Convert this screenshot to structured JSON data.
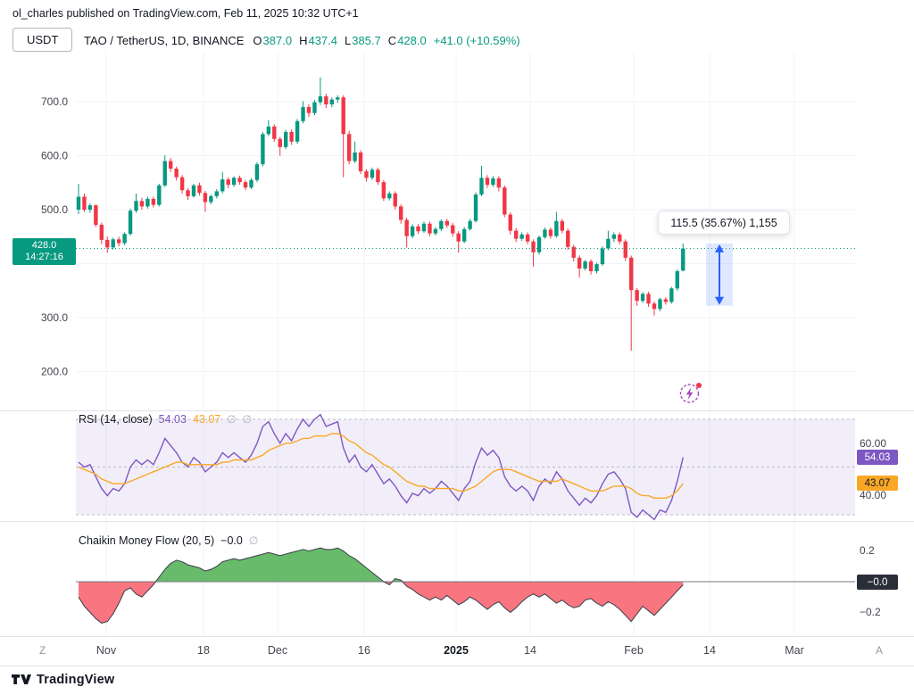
{
  "header": {
    "published_line": "ol_charles published on TradingView.com, Feb 11, 2025 10:32 UTC+1"
  },
  "toolbar": {
    "currency_button": "USDT"
  },
  "symbol_bar": {
    "title": "TAO / TetherUS, 1D, BINANCE",
    "o_label": "O",
    "o_value": "387.0",
    "h_label": "H",
    "h_value": "437.4",
    "l_label": "L",
    "l_value": "385.7",
    "c_label": "C",
    "c_value": "428.0",
    "change": "+41.0 (+10.59%)"
  },
  "price_scale": {
    "current_value": "428.0",
    "current_time": "14:27:16"
  },
  "measure_tooltip": {
    "label": "115.5 (35.67%) 1,155"
  },
  "rsi": {
    "title": "RSI (14, close)",
    "value": "54.03",
    "ma_value": "43.07",
    "hide_icon": "∅",
    "right_upper": "60.00",
    "right_lower": "40.00",
    "badge_value": "54.03",
    "badge_ma": "43.07"
  },
  "cmf": {
    "title": "Chaikin Money Flow (20, 5)",
    "value": "−0.0",
    "hide_icon": "∅",
    "right_upper": "0.2",
    "right_lower": "−0.2",
    "badge": "−0.0"
  },
  "time_axis": {
    "left_hint": "Z",
    "right_hint": "A"
  },
  "footer": {
    "brand": "TradingView"
  },
  "colors": {
    "up": "#089981",
    "down": "#F23645",
    "rsi": "#7E57C2",
    "rsi_ma": "#F9A825",
    "cmf_pos": "#4CAF50",
    "cmf_neg": "#F7525F",
    "accent_blue": "#2962FF",
    "grid": "#F0F3FA"
  },
  "chart_data": {
    "type": "candlestick",
    "symbol": "TAO/USDT",
    "timeframe": "1D",
    "exchange": "BINANCE",
    "last": {
      "open": 387.0,
      "high": 437.4,
      "low": 385.7,
      "close": 428.0,
      "change": 41.0,
      "change_pct": 10.59
    },
    "price_pane": {
      "ylim": [
        190,
        770
      ],
      "grid_prices": [
        200,
        300,
        400,
        500,
        600,
        700
      ],
      "axis_labels": [
        {
          "text": "700.0",
          "price": 700
        },
        {
          "text": "600.0",
          "price": 600
        },
        {
          "text": "500.0",
          "price": 500
        },
        {
          "text": "300.0",
          "price": 300
        },
        {
          "text": "200.0",
          "price": 200
        }
      ],
      "current_price": 428.0,
      "candles": [
        [
          500,
          548,
          492,
          524
        ],
        [
          524,
          530,
          496,
          500
        ],
        [
          500,
          512,
          494,
          508
        ],
        [
          508,
          510,
          468,
          472
        ],
        [
          472,
          476,
          436,
          444
        ],
        [
          444,
          450,
          420,
          430
        ],
        [
          430,
          448,
          426,
          445
        ],
        [
          445,
          450,
          432,
          438
        ],
        [
          438,
          458,
          434,
          455
        ],
        [
          455,
          502,
          452,
          498
        ],
        [
          498,
          530,
          494,
          516
        ],
        [
          516,
          522,
          500,
          506
        ],
        [
          506,
          524,
          502,
          520
        ],
        [
          520,
          524,
          504,
          509
        ],
        [
          509,
          548,
          506,
          545
        ],
        [
          545,
          601,
          542,
          590
        ],
        [
          590,
          596,
          570,
          576
        ],
        [
          576,
          580,
          554,
          560
        ],
        [
          560,
          564,
          530,
          536
        ],
        [
          536,
          540,
          518,
          525
        ],
        [
          525,
          548,
          522,
          545
        ],
        [
          545,
          550,
          526,
          531
        ],
        [
          531,
          535,
          496,
          514
        ],
        [
          514,
          528,
          510,
          525
        ],
        [
          525,
          538,
          521,
          534
        ],
        [
          534,
          570,
          530,
          556
        ],
        [
          556,
          560,
          540,
          546
        ],
        [
          546,
          562,
          542,
          559
        ],
        [
          559,
          563,
          546,
          551
        ],
        [
          551,
          555,
          536,
          541
        ],
        [
          541,
          558,
          538,
          555
        ],
        [
          555,
          588,
          551,
          584
        ],
        [
          584,
          644,
          580,
          640
        ],
        [
          640,
          666,
          636,
          654
        ],
        [
          654,
          658,
          626,
          631
        ],
        [
          631,
          635,
          600,
          616
        ],
        [
          616,
          648,
          612,
          644
        ],
        [
          644,
          649,
          620,
          626
        ],
        [
          626,
          668,
          622,
          664
        ],
        [
          664,
          701,
          660,
          690
        ],
        [
          690,
          695,
          672,
          679
        ],
        [
          679,
          703,
          675,
          699
        ],
        [
          699,
          745,
          694,
          710
        ],
        [
          710,
          715,
          688,
          695
        ],
        [
          695,
          708,
          690,
          704
        ],
        [
          704,
          712,
          698,
          708
        ],
        [
          708,
          712,
          560,
          640
        ],
        [
          640,
          646,
          584,
          590
        ],
        [
          590,
          626,
          586,
          606
        ],
        [
          606,
          610,
          566,
          571
        ],
        [
          571,
          575,
          552,
          559
        ],
        [
          559,
          578,
          555,
          574
        ],
        [
          574,
          578,
          546,
          551
        ],
        [
          551,
          555,
          516,
          521
        ],
        [
          521,
          534,
          517,
          530
        ],
        [
          530,
          534,
          500,
          506
        ],
        [
          506,
          510,
          474,
          481
        ],
        [
          481,
          485,
          430,
          451
        ],
        [
          451,
          473,
          447,
          469
        ],
        [
          469,
          473,
          455,
          460
        ],
        [
          460,
          478,
          457,
          474
        ],
        [
          474,
          478,
          451,
          456
        ],
        [
          456,
          468,
          452,
          464
        ],
        [
          464,
          482,
          460,
          479
        ],
        [
          479,
          483,
          466,
          471
        ],
        [
          471,
          475,
          450,
          456
        ],
        [
          456,
          460,
          420,
          441
        ],
        [
          441,
          468,
          438,
          464
        ],
        [
          464,
          483,
          461,
          479
        ],
        [
          479,
          532,
          476,
          528
        ],
        [
          528,
          581,
          525,
          559
        ],
        [
          559,
          564,
          540,
          546
        ],
        [
          546,
          562,
          542,
          558
        ],
        [
          558,
          562,
          534,
          541
        ],
        [
          541,
          545,
          486,
          491
        ],
        [
          491,
          495,
          454,
          461
        ],
        [
          461,
          466,
          440,
          446
        ],
        [
          446,
          458,
          442,
          454
        ],
        [
          454,
          458,
          436,
          441
        ],
        [
          441,
          445,
          394,
          421
        ],
        [
          421,
          452,
          417,
          449
        ],
        [
          449,
          467,
          446,
          463
        ],
        [
          463,
          467,
          446,
          451
        ],
        [
          451,
          496,
          448,
          479
        ],
        [
          479,
          483,
          456,
          461
        ],
        [
          461,
          465,
          426,
          431
        ],
        [
          431,
          435,
          404,
          411
        ],
        [
          411,
          415,
          374,
          391
        ],
        [
          391,
          407,
          387,
          404
        ],
        [
          404,
          408,
          380,
          386
        ],
        [
          386,
          402,
          382,
          399
        ],
        [
          399,
          432,
          396,
          428
        ],
        [
          428,
          461,
          425,
          446
        ],
        [
          446,
          458,
          440,
          454
        ],
        [
          454,
          458,
          436,
          441
        ],
        [
          441,
          445,
          405,
          411
        ],
        [
          411,
          415,
          239,
          351
        ],
        [
          351,
          355,
          322,
          331
        ],
        [
          331,
          347,
          327,
          344
        ],
        [
          344,
          348,
          320,
          326
        ],
        [
          326,
          330,
          304,
          316
        ],
        [
          316,
          337,
          312,
          334
        ],
        [
          334,
          338,
          324,
          329
        ],
        [
          329,
          357,
          326,
          354
        ],
        [
          354,
          389,
          350,
          386
        ],
        [
          387,
          437.4,
          385.7,
          428
        ]
      ]
    },
    "measure": {
      "x": 806,
      "half_width": 15,
      "from_price": 322,
      "to_price": 437.4,
      "label": "115.5 (35.67%) 1,155"
    },
    "rsi_pane": {
      "upper": 70,
      "middle": 50,
      "lower": 30,
      "series": [
        {
          "name": "RSI",
          "color": "#7E57C2",
          "values": [
            52,
            50,
            51,
            46,
            41,
            38,
            41,
            40,
            43,
            50,
            53,
            51,
            53,
            51,
            56,
            62,
            59,
            56,
            52,
            50,
            54,
            52,
            48,
            50,
            52,
            56,
            54,
            56,
            54,
            52,
            55,
            60,
            67,
            69,
            64,
            60,
            64,
            61,
            66,
            70,
            67,
            70,
            72,
            67,
            68,
            69,
            58,
            52,
            55,
            50,
            48,
            51,
            47,
            43,
            45,
            42,
            38,
            35,
            39,
            38,
            41,
            39,
            41,
            44,
            42,
            39,
            36,
            41,
            44,
            52,
            58,
            55,
            57,
            54,
            46,
            42,
            40,
            42,
            40,
            36,
            42,
            45,
            43,
            48,
            45,
            40,
            37,
            34,
            37,
            35,
            38,
            43,
            47,
            48,
            45,
            41,
            31,
            29,
            32,
            30,
            28,
            32,
            31,
            36,
            44,
            54.03
          ]
        },
        {
          "name": "RSI-based MA",
          "color": "#F9A825",
          "values": [
            50,
            49,
            48,
            47,
            45,
            44,
            43,
            43,
            43,
            44,
            45,
            46,
            47,
            48,
            49,
            50,
            51,
            52,
            52,
            51,
            51,
            51,
            51,
            51,
            51,
            52,
            52,
            53,
            53,
            53,
            53,
            54,
            55,
            57,
            58,
            59,
            60,
            60,
            61,
            62,
            62,
            63,
            63,
            63,
            64,
            64,
            63,
            61,
            60,
            58,
            56,
            55,
            53,
            51,
            50,
            48,
            46,
            44,
            43,
            42,
            42,
            41,
            41,
            41,
            41,
            41,
            40,
            40,
            41,
            42,
            44,
            46,
            48,
            49,
            49,
            49,
            48,
            47,
            46,
            45,
            44,
            44,
            44,
            44,
            45,
            44,
            43,
            42,
            41,
            40,
            40,
            40,
            41,
            42,
            42,
            42,
            41,
            39,
            38,
            38,
            37,
            37,
            37,
            38,
            40,
            43.07
          ]
        }
      ]
    },
    "cmf_pane": {
      "ylim": [
        -0.3,
        0.25
      ],
      "grid": [
        0.2,
        0,
        -0.2
      ],
      "values": [
        -0.1,
        -0.16,
        -0.2,
        -0.24,
        -0.27,
        -0.26,
        -0.21,
        -0.14,
        -0.06,
        -0.04,
        -0.08,
        -0.1,
        -0.06,
        -0.02,
        0.03,
        0.08,
        0.12,
        0.14,
        0.13,
        0.11,
        0.1,
        0.09,
        0.07,
        0.08,
        0.1,
        0.13,
        0.14,
        0.15,
        0.14,
        0.15,
        0.16,
        0.17,
        0.18,
        0.19,
        0.18,
        0.17,
        0.18,
        0.19,
        0.2,
        0.21,
        0.2,
        0.21,
        0.22,
        0.21,
        0.21,
        0.22,
        0.2,
        0.17,
        0.15,
        0.12,
        0.09,
        0.06,
        0.03,
        0.0,
        -0.02,
        0.02,
        0.01,
        -0.03,
        -0.05,
        -0.08,
        -0.1,
        -0.12,
        -0.1,
        -0.12,
        -0.09,
        -0.12,
        -0.15,
        -0.13,
        -0.1,
        -0.12,
        -0.15,
        -0.18,
        -0.15,
        -0.13,
        -0.17,
        -0.2,
        -0.17,
        -0.13,
        -0.1,
        -0.08,
        -0.1,
        -0.08,
        -0.11,
        -0.14,
        -0.12,
        -0.15,
        -0.17,
        -0.16,
        -0.12,
        -0.11,
        -0.14,
        -0.16,
        -0.13,
        -0.15,
        -0.18,
        -0.22,
        -0.26,
        -0.21,
        -0.16,
        -0.19,
        -0.22,
        -0.18,
        -0.14,
        -0.1,
        -0.06,
        -0.02
      ]
    },
    "x_axis": [
      {
        "label": "Nov",
        "x": 119
      },
      {
        "label": "18",
        "x": 228
      },
      {
        "label": "Dec",
        "x": 311
      },
      {
        "label": "16",
        "x": 408
      },
      {
        "label": "2025",
        "x": 511,
        "bold": true
      },
      {
        "label": "14",
        "x": 594
      },
      {
        "label": "Feb",
        "x": 710
      },
      {
        "label": "14",
        "x": 795
      },
      {
        "label": "Mar",
        "x": 890
      }
    ]
  }
}
